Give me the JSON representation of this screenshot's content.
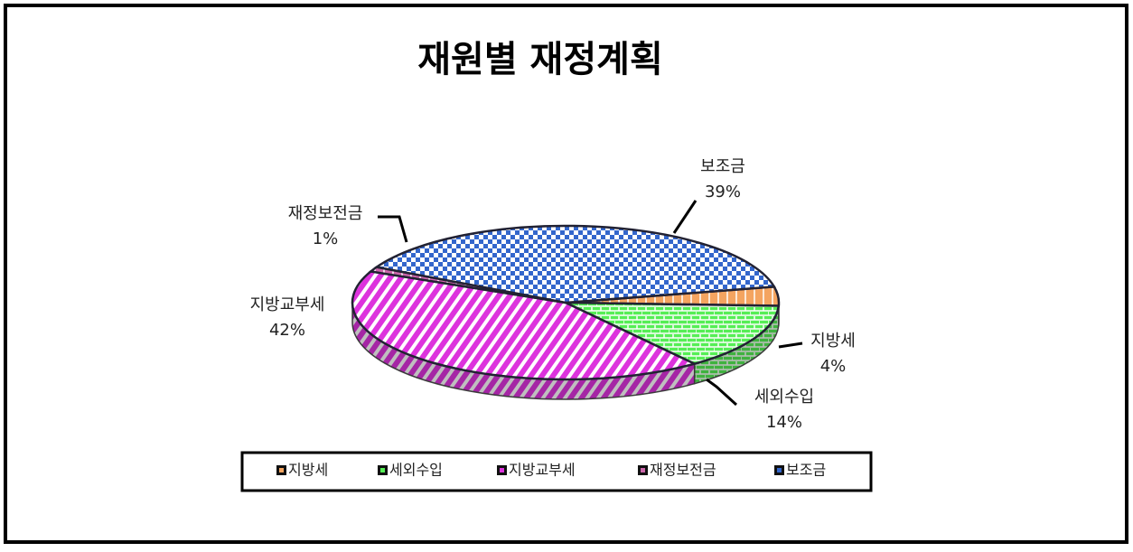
{
  "chart_data": {
    "type": "pie",
    "title": "재원별 재정계획",
    "categories": [
      "지방세",
      "세외수입",
      "지방교부세",
      "재정보전금",
      "보조금"
    ],
    "values": [
      4,
      14,
      42,
      1,
      39
    ],
    "value_labels": [
      "4%",
      "14%",
      "42%",
      "1%",
      "39%"
    ],
    "colors": [
      "#f4a460",
      "#55ee55",
      "#dd33dd",
      "#cc66aa",
      "#3366cc"
    ],
    "legend": "bottom"
  }
}
